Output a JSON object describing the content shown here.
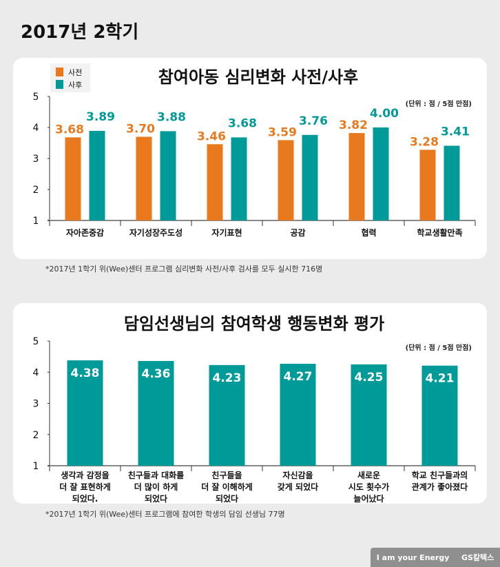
{
  "page_title": "2017년 2학기",
  "chart_data": [
    {
      "type": "bar",
      "title": "참여아동 심리변화 사전/사후",
      "unit_note": "(단위 : 점 / 5점 만점)",
      "categories": [
        "자아존중감",
        "자기성장주도성",
        "자기표현",
        "공감",
        "협력",
        "학교생활만족"
      ],
      "series": [
        {
          "name": "사전",
          "color": "#e8791c",
          "values": [
            3.68,
            3.7,
            3.46,
            3.59,
            3.82,
            3.28
          ]
        },
        {
          "name": "사후",
          "color": "#009b98",
          "values": [
            3.89,
            3.88,
            3.68,
            3.76,
            4.0,
            3.41
          ]
        }
      ],
      "ylim": [
        1,
        5
      ],
      "yticks": [
        1,
        2,
        3,
        4,
        5
      ],
      "legend": "top-left",
      "grid": false
    },
    {
      "type": "bar",
      "title": "담임선생님의 참여학생 행동변화 평가",
      "unit_note": "(단위 : 점 / 5점 만점)",
      "categories": [
        "생각과 감정을\n더 잘 표현하게\n되었다.",
        "친구들과 대화를\n더 많이 하게\n되었다",
        "친구들을\n더 잘 이해하게\n되었다",
        "자신감을\n갖게 되었다",
        "새로운\n시도 횟수가\n늘어났다",
        "학교 친구들과의\n관계가 좋아졌다"
      ],
      "series": [
        {
          "color": "#009b98",
          "values": [
            4.38,
            4.36,
            4.23,
            4.27,
            4.25,
            4.21
          ]
        }
      ],
      "ylim": [
        1,
        5
      ],
      "yticks": [
        1,
        2,
        3,
        4,
        5
      ],
      "grid": false
    }
  ],
  "notes": [
    "*2017년 1학기 위(Wee)센터 프로그램 심리변화 사전/사후 검사를 모두 실시한 716명",
    "*2017년 1학기 위(Wee)센터 프로그램에 참여한 학생의 담임 선생님 77명"
  ],
  "footer": {
    "slogan": "I am your Energy",
    "brand": "GS칼텍스"
  }
}
